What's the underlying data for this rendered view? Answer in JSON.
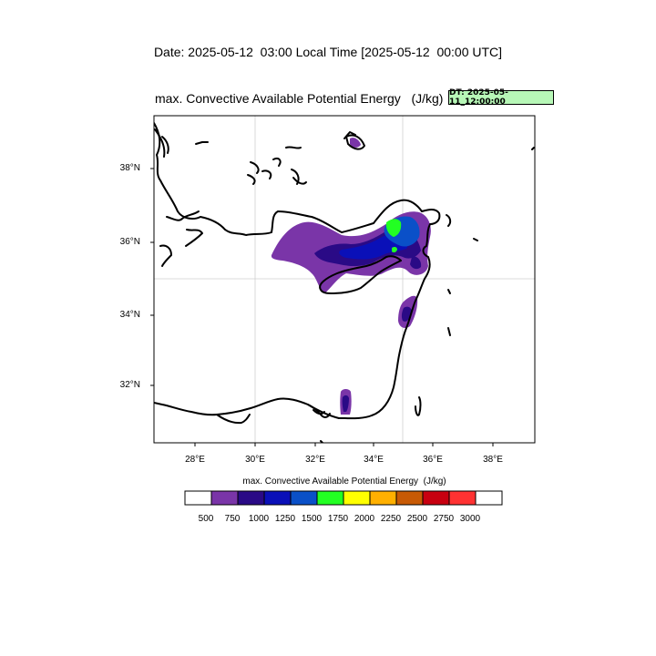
{
  "header": {
    "date_title": "Date: 2025-05-12  03:00 Local Time [2025-05-12  00:00 UTC]"
  },
  "map": {
    "title": "max. Convective Available Potential Energy   (J/kg)",
    "dt_badge": "DT: 2025-05-11_12:00:00",
    "lat_labels": [
      "38°N",
      "36°N",
      "34°N",
      "32°N"
    ],
    "lon_labels": [
      "28°E",
      "30°E",
      "32°E",
      "34°E",
      "36°E",
      "38°E"
    ],
    "gridlines": {
      "lon": [
        "30°E",
        "34°E"
      ],
      "lat": [
        "35°N"
      ]
    },
    "region": "Eastern Mediterranean"
  },
  "colorbar": {
    "title": "max. Convective Available Potential Energy  (J/kg)",
    "levels": [
      "500",
      "750",
      "1000",
      "1250",
      "1500",
      "1750",
      "2000",
      "2250",
      "2500",
      "2750",
      "3000"
    ],
    "colors": [
      "#ffffff",
      "#7a35a8",
      "#2a0a86",
      "#0a10b8",
      "#0a50c8",
      "#22ff22",
      "#ffff00",
      "#ffb000",
      "#c85a05",
      "#c80010",
      "#ff3232",
      "#ffffff"
    ]
  }
}
